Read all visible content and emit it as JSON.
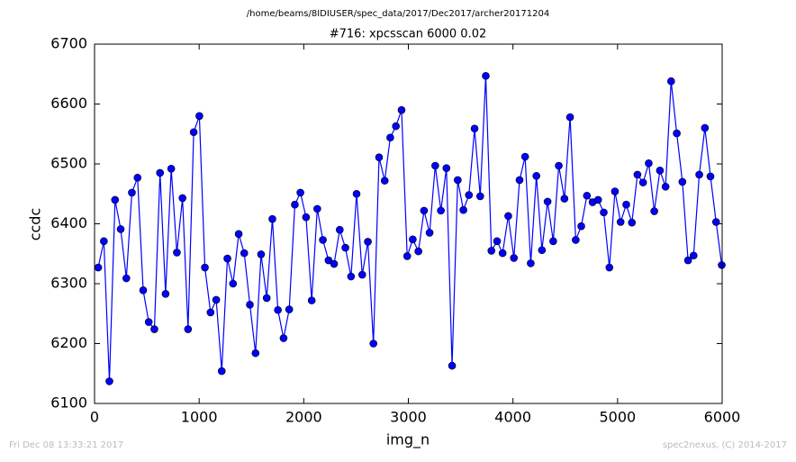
{
  "chart_data": {
    "type": "line",
    "suptitle": "/home/beams/8IDIUSER/spec_data/2017/Dec2017/archer20171204",
    "title": "#716: xpcsscan 6000 0.02",
    "x_label": "img_n",
    "y_label": "ccdc",
    "footer_left": "Fri Dec 08 13:33:21 2017",
    "footer_right": "spec2nexus, (C) 2014-2017",
    "xlim": [
      0,
      6000
    ],
    "xticks": [
      0,
      1000,
      2000,
      3000,
      4000,
      5000,
      6000
    ],
    "ylim": [
      6100,
      6700
    ],
    "yticks": [
      6100,
      6200,
      6300,
      6400,
      6500,
      6600,
      6700
    ],
    "series": [
      {
        "name": "ccdc",
        "color": "#0000ff",
        "x": [
          35,
          89,
          142,
          196,
          250,
          304,
          357,
          411,
          465,
          518,
          572,
          626,
          679,
          733,
          787,
          841,
          894,
          948,
          1002,
          1055,
          1109,
          1163,
          1216,
          1270,
          1324,
          1378,
          1431,
          1485,
          1539,
          1592,
          1646,
          1700,
          1753,
          1807,
          1861,
          1915,
          1968,
          2022,
          2076,
          2129,
          2183,
          2237,
          2290,
          2344,
          2398,
          2452,
          2505,
          2559,
          2613,
          2666,
          2720,
          2774,
          2827,
          2881,
          2935,
          2989,
          3042,
          3096,
          3150,
          3203,
          3257,
          3311,
          3364,
          3418,
          3472,
          3526,
          3579,
          3633,
          3687,
          3740,
          3794,
          3848,
          3901,
          3955,
          4009,
          4063,
          4116,
          4170,
          4224,
          4277,
          4331,
          4385,
          4438,
          4492,
          4546,
          4600,
          4653,
          4707,
          4761,
          4814,
          4868,
          4922,
          4975,
          5029,
          5083,
          5137,
          5190,
          5244,
          5298,
          5351,
          5405,
          5459,
          5512,
          5566,
          5620,
          5674,
          5727,
          5781,
          5835,
          5888,
          5942,
          5996
        ],
        "values": [
          6327,
          6371,
          6137,
          6440,
          6391,
          6309,
          6452,
          6477,
          6289,
          6236,
          6224,
          6485,
          6283,
          6492,
          6352,
          6443,
          6224,
          6553,
          6580,
          6327,
          6252,
          6273,
          6154,
          6342,
          6300,
          6383,
          6351,
          6265,
          6184,
          6349,
          6276,
          6408,
          6256,
          6209,
          6257,
          6432,
          6452,
          6411,
          6272,
          6425,
          6373,
          6339,
          6333,
          6390,
          6360,
          6312,
          6450,
          6315,
          6370,
          6200,
          6511,
          6472,
          6544,
          6563,
          6590,
          6346,
          6374,
          6354,
          6422,
          6385,
          6497,
          6422,
          6493,
          6163,
          6473,
          6423,
          6448,
          6559,
          6446,
          6647,
          6355,
          6371,
          6351,
          6413,
          6343,
          6473,
          6512,
          6334,
          6480,
          6356,
          6437,
          6371,
          6497,
          6442,
          6578,
          6373,
          6396,
          6447,
          6436,
          6440,
          6419,
          6327,
          6454,
          6403,
          6432,
          6402,
          6482,
          6469,
          6501,
          6421,
          6489,
          6462,
          6638,
          6551,
          6470,
          6339,
          6347,
          6482,
          6560,
          6479,
          6403,
          6331
        ]
      }
    ]
  }
}
